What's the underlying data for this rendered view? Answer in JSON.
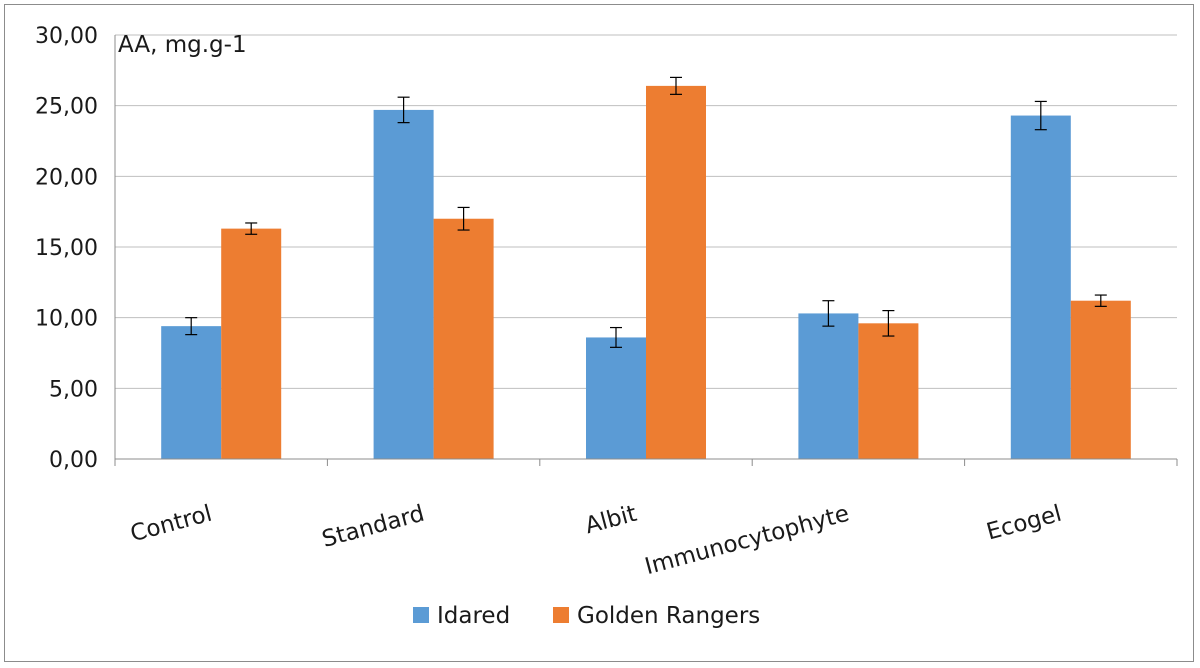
{
  "chart_data": {
    "type": "bar",
    "ylabel": "AA, mg.g-1",
    "ylim": [
      0,
      30
    ],
    "yticks": [
      "0,00",
      "5,00",
      "10,00",
      "15,00",
      "20,00",
      "25,00",
      "30,00"
    ],
    "categories": [
      "Control",
      "Standard",
      "Albit",
      "Immunocytophyte",
      "Ecogel"
    ],
    "series": [
      {
        "name": "Idared",
        "color": "#5B9BD5",
        "values": [
          9.4,
          24.7,
          8.6,
          10.3,
          24.3
        ],
        "errors": [
          0.6,
          0.9,
          0.7,
          0.9,
          1.0
        ]
      },
      {
        "name": "Golden Rangers",
        "color": "#ED7D31",
        "values": [
          16.3,
          17.0,
          26.4,
          9.6,
          11.2
        ],
        "errors": [
          0.4,
          0.8,
          0.6,
          0.9,
          0.4
        ]
      }
    ],
    "grid": true,
    "legend": "bottom",
    "error_bars": true
  }
}
